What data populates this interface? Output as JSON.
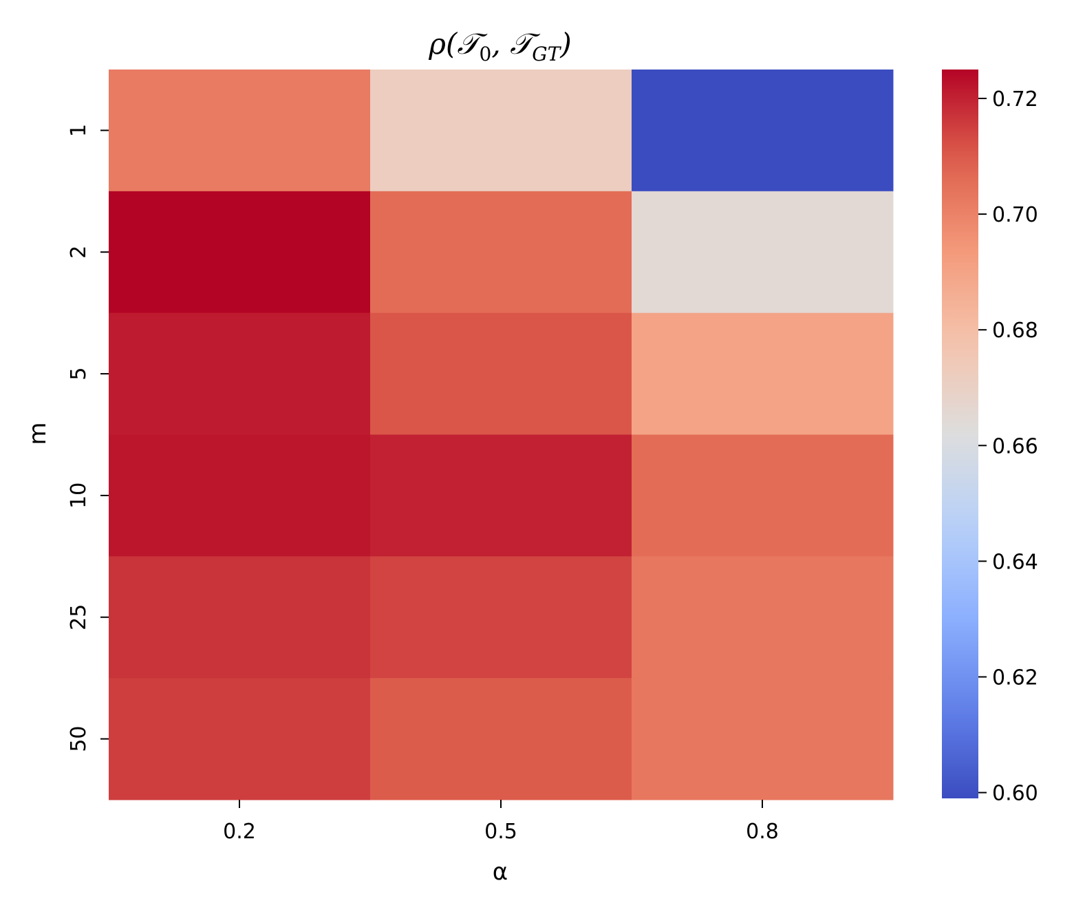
{
  "chart_data": {
    "type": "heatmap",
    "title": "ρ(𝒯₀, 𝒯GT)",
    "title_parts": {
      "rho": "ρ(",
      "t0": "𝒯",
      "sub0": "0",
      "sep": ", ",
      "tgt": "𝒯",
      "subgt": "GT",
      "close": ")"
    },
    "xlabel": "α",
    "ylabel": "m",
    "x_categories": [
      "0.2",
      "0.5",
      "0.8"
    ],
    "y_categories": [
      "1",
      "2",
      "5",
      "10",
      "25",
      "50"
    ],
    "values": [
      [
        0.702,
        0.672,
        0.599
      ],
      [
        0.725,
        0.706,
        0.665
      ],
      [
        0.721,
        0.711,
        0.69
      ],
      [
        0.722,
        0.72,
        0.706
      ],
      [
        0.717,
        0.714,
        0.703
      ],
      [
        0.715,
        0.71,
        0.703
      ]
    ],
    "colormap": "coolwarm",
    "vmin": 0.599,
    "vmax": 0.725,
    "colorbar_ticks": [
      "0.60",
      "0.62",
      "0.64",
      "0.66",
      "0.68",
      "0.70",
      "0.72"
    ],
    "colorbar_tick_values": [
      0.6,
      0.62,
      0.64,
      0.66,
      0.68,
      0.7,
      0.72
    ],
    "colorbar_position": "right"
  }
}
